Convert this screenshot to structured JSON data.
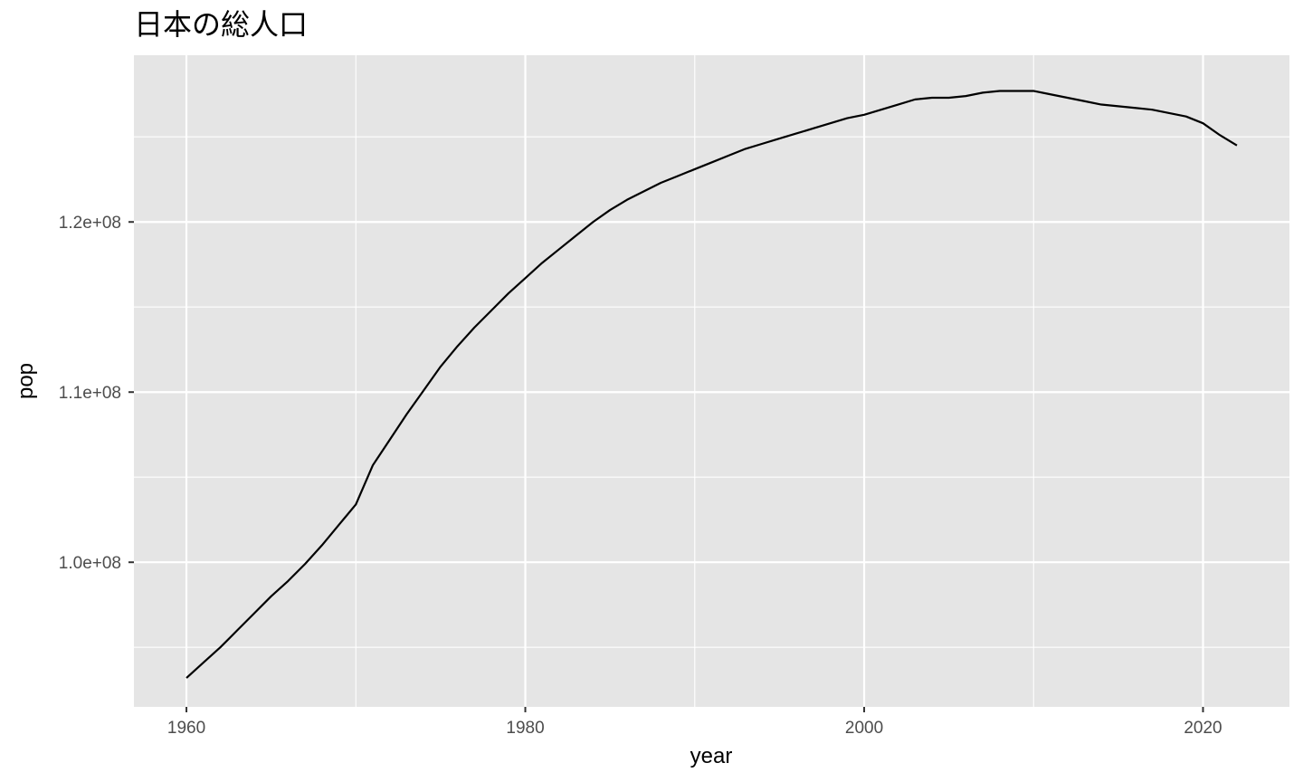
{
  "chart_data": {
    "type": "line",
    "title": "日本の総人口",
    "xlabel": "year",
    "ylabel": "pop",
    "xlim": [
      1956.9,
      2025.1
    ],
    "ylim": [
      91500000,
      129800000
    ],
    "x_ticks": [
      1960,
      1980,
      2000,
      2020
    ],
    "x_tick_labels": [
      "1960",
      "1980",
      "2000",
      "2020"
    ],
    "x_minor_ticks": [
      1970,
      1990,
      2010
    ],
    "y_ticks": [
      100000000,
      110000000,
      120000000
    ],
    "y_tick_labels": [
      "1.0e+08",
      "1.1e+08",
      "1.2e+08"
    ],
    "y_minor_ticks": [
      95000000,
      105000000,
      115000000,
      125000000
    ],
    "grid": true,
    "colors": {
      "panel_bg": "#e5e5e5",
      "grid": "#ffffff",
      "line": "#000000",
      "tick_text": "#4d4d4d"
    },
    "series": [
      {
        "x": [
          1960,
          1961,
          1962,
          1963,
          1964,
          1965,
          1966,
          1967,
          1968,
          1969,
          1970,
          1971,
          1972,
          1973,
          1974,
          1975,
          1976,
          1977,
          1978,
          1979,
          1980,
          1981,
          1982,
          1983,
          1984,
          1985,
          1986,
          1987,
          1988,
          1989,
          1990,
          1991,
          1992,
          1993,
          1994,
          1995,
          1996,
          1997,
          1998,
          1999,
          2000,
          2001,
          2002,
          2003,
          2004,
          2005,
          2006,
          2007,
          2008,
          2009,
          2010,
          2011,
          2012,
          2013,
          2014,
          2015,
          2016,
          2017,
          2018,
          2019,
          2020,
          2021,
          2022
        ],
        "values": [
          93200000,
          94100000,
          95000000,
          96000000,
          97000000,
          98000000,
          98900000,
          99900000,
          101000000,
          102200000,
          103400000,
          105700000,
          107200000,
          108700000,
          110100000,
          111500000,
          112700000,
          113800000,
          114800000,
          115800000,
          116700000,
          117600000,
          118400000,
          119200000,
          120000000,
          120700000,
          121300000,
          121800000,
          122300000,
          122700000,
          123100000,
          123500000,
          123900000,
          124300000,
          124600000,
          124900000,
          125200000,
          125500000,
          125800000,
          126100000,
          126300000,
          126600000,
          126900000,
          127200000,
          127300000,
          127300000,
          127400000,
          127600000,
          127700000,
          127700000,
          127700000,
          127500000,
          127300000,
          127100000,
          126900000,
          126800000,
          126700000,
          126600000,
          126400000,
          126200000,
          125800000,
          125100000,
          124500000
        ]
      }
    ]
  }
}
